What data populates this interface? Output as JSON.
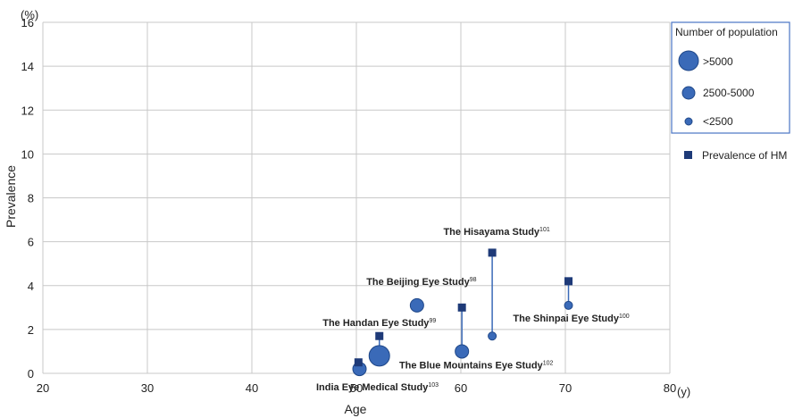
{
  "chart_data": {
    "type": "scatter",
    "xlabel": "Age",
    "ylabel": "Prevalence",
    "x_unit": "(y)",
    "y_unit": "(%)",
    "xlim": [
      20,
      80
    ],
    "ylim": [
      0,
      16
    ],
    "x_ticks": [
      20,
      30,
      40,
      50,
      60,
      70,
      80
    ],
    "y_ticks": [
      0,
      2,
      4,
      6,
      8,
      10,
      12,
      14,
      16
    ],
    "grid": true,
    "colors": {
      "bubble": "#3a6ab8",
      "bubble_edge": "#1f4788",
      "square": "#1e3a78",
      "line": "#3a6ab8"
    },
    "legend": {
      "position": "right",
      "title": "Number of population",
      "size_categories": [
        ">5000",
        "2500-5000",
        "<2500"
      ],
      "marker_label": "Prevalence of HM"
    },
    "studies": [
      {
        "name": "India Eye Medical Study",
        "ref": "103",
        "bubble": {
          "x": 50.3,
          "y": 0.2,
          "size": "2500-5000"
        },
        "hm": {
          "x": 50.2,
          "y": 0.5
        }
      },
      {
        "name": "The Handan Eye Study",
        "ref": "99",
        "bubble": {
          "x": 52.2,
          "y": 0.8,
          "size": ">5000"
        },
        "hm": {
          "x": 52.2,
          "y": 1.7
        }
      },
      {
        "name": "The Beijing Eye Study",
        "ref": "98",
        "bubble": {
          "x": 55.8,
          "y": 3.1,
          "size": "2500-5000"
        },
        "hm": null
      },
      {
        "name": "The Blue Mountains Eye Study",
        "ref": "102",
        "bubble": {
          "x": 60.1,
          "y": 1.0,
          "size": "2500-5000"
        },
        "hm": {
          "x": 60.1,
          "y": 3.0
        }
      },
      {
        "name": "The Hisayama Study",
        "ref": "101",
        "bubble": {
          "x": 63.0,
          "y": 1.7,
          "size": "<2500"
        },
        "hm": {
          "x": 63.0,
          "y": 5.5
        }
      },
      {
        "name": "The Shinpai Eye Study",
        "ref": "100",
        "bubble": {
          "x": 70.3,
          "y": 3.1,
          "size": "<2500"
        },
        "hm": {
          "x": 70.3,
          "y": 4.2
        }
      }
    ]
  }
}
